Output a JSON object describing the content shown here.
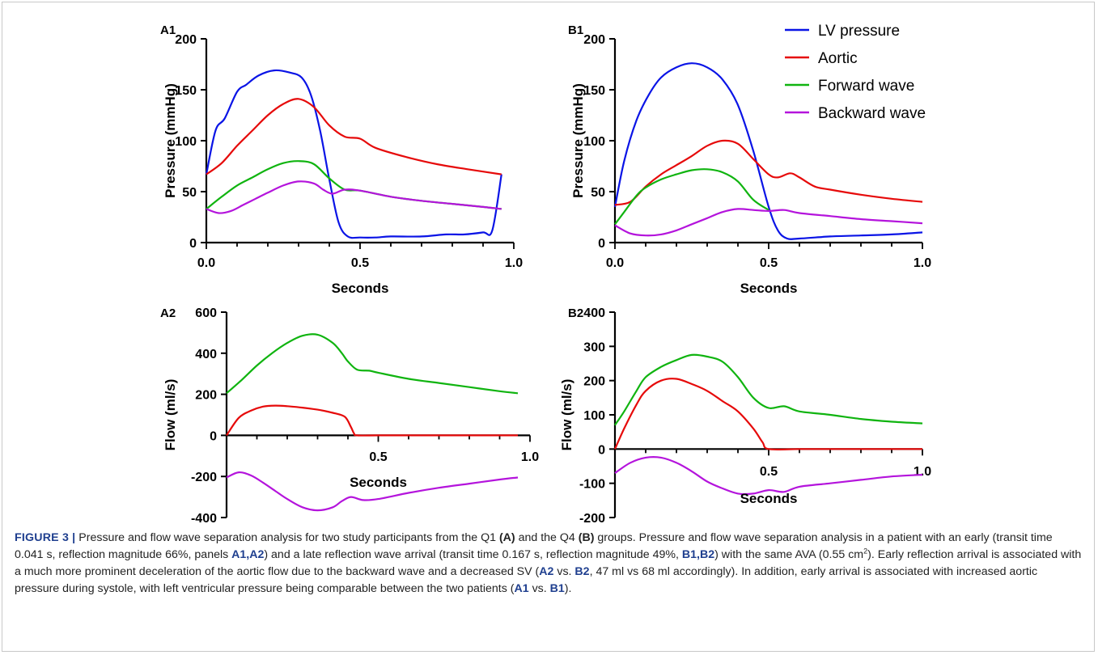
{
  "colors": {
    "lv_pressure": "#0a14e6",
    "aortic": "#e60a0a",
    "forward_wave": "#10b410",
    "backward_wave": "#b414dc",
    "axis": "#000000",
    "caption_label": "#1f3f8f"
  },
  "legend": {
    "items": [
      {
        "label": "LV pressure",
        "color": "#0a14e6"
      },
      {
        "label": "Aortic",
        "color": "#e60a0a"
      },
      {
        "label": "Forward wave",
        "color": "#10b410"
      },
      {
        "label": "Backward wave",
        "color": "#b414dc"
      }
    ],
    "placement": "top-right"
  },
  "chart_data": [
    {
      "panel": "A1",
      "type": "line",
      "xlabel": "Seconds",
      "ylabel": "Pressure (mmHg)",
      "xlim": [
        0,
        1
      ],
      "ylim": [
        0,
        200
      ],
      "xticks": [
        "0.0",
        "0.5",
        "1.0"
      ],
      "yticks": [
        "0",
        "50",
        "100",
        "150",
        "200"
      ],
      "series": [
        {
          "name": "LV pressure",
          "x": [
            0,
            0.03,
            0.06,
            0.1,
            0.13,
            0.17,
            0.22,
            0.27,
            0.31,
            0.34,
            0.37,
            0.4,
            0.43,
            0.46,
            0.5,
            0.55,
            0.6,
            0.7,
            0.78,
            0.84,
            0.9,
            0.93,
            0.96
          ],
          "y": [
            67,
            110,
            122,
            148,
            155,
            164,
            169,
            167,
            162,
            145,
            110,
            62,
            20,
            6,
            5,
            5,
            6,
            6,
            8,
            8,
            10,
            12,
            67
          ]
        },
        {
          "name": "Aortic",
          "x": [
            0,
            0.05,
            0.1,
            0.15,
            0.2,
            0.25,
            0.3,
            0.35,
            0.4,
            0.45,
            0.5,
            0.55,
            0.65,
            0.75,
            0.85,
            0.96
          ],
          "y": [
            67,
            78,
            95,
            110,
            125,
            136,
            141,
            133,
            115,
            104,
            102,
            93,
            84,
            77,
            72,
            67
          ]
        },
        {
          "name": "Forward wave",
          "x": [
            0,
            0.05,
            0.1,
            0.15,
            0.2,
            0.25,
            0.3,
            0.35,
            0.4,
            0.45,
            0.5,
            0.6,
            0.7,
            0.8,
            0.9,
            0.96
          ],
          "y": [
            33,
            45,
            56,
            64,
            72,
            78,
            80,
            77,
            63,
            52,
            51,
            45,
            41,
            38,
            35,
            33
          ]
        },
        {
          "name": "Backward wave",
          "x": [
            0,
            0.04,
            0.08,
            0.12,
            0.16,
            0.2,
            0.25,
            0.3,
            0.35,
            0.38,
            0.41,
            0.45,
            0.5,
            0.6,
            0.7,
            0.8,
            0.9,
            0.96
          ],
          "y": [
            33,
            29,
            31,
            37,
            43,
            49,
            56,
            60,
            58,
            52,
            48,
            52,
            51,
            45,
            41,
            38,
            35,
            33
          ]
        }
      ]
    },
    {
      "panel": "B1",
      "type": "line",
      "xlabel": "Seconds",
      "ylabel": "Pressure (mmHg)",
      "xlim": [
        0,
        1
      ],
      "ylim": [
        0,
        200
      ],
      "xticks": [
        "0.0",
        "0.5",
        "1.0"
      ],
      "yticks": [
        "0",
        "50",
        "100",
        "150",
        "200"
      ],
      "series": [
        {
          "name": "LV pressure",
          "x": [
            0,
            0.03,
            0.07,
            0.11,
            0.15,
            0.2,
            0.25,
            0.3,
            0.35,
            0.4,
            0.45,
            0.5,
            0.53,
            0.56,
            0.6,
            0.7,
            0.8,
            0.9,
            1.0
          ],
          "y": [
            35,
            80,
            120,
            145,
            162,
            172,
            176,
            172,
            160,
            135,
            90,
            35,
            12,
            4,
            4,
            6,
            7,
            8,
            10
          ]
        },
        {
          "name": "Aortic",
          "x": [
            0,
            0.05,
            0.1,
            0.15,
            0.2,
            0.25,
            0.3,
            0.35,
            0.4,
            0.45,
            0.5,
            0.53,
            0.57,
            0.6,
            0.65,
            0.7,
            0.8,
            0.9,
            1.0
          ],
          "y": [
            37,
            40,
            55,
            67,
            76,
            85,
            95,
            100,
            97,
            82,
            67,
            64,
            68,
            64,
            55,
            52,
            47,
            43,
            40
          ]
        },
        {
          "name": "Forward wave",
          "x": [
            0,
            0.03,
            0.07,
            0.1,
            0.15,
            0.2,
            0.25,
            0.3,
            0.35,
            0.4,
            0.45,
            0.5
          ],
          "y": [
            18,
            30,
            46,
            54,
            62,
            67,
            71,
            72,
            69,
            60,
            42,
            32
          ]
        },
        {
          "name": "Backward wave",
          "x": [
            0,
            0.05,
            0.1,
            0.15,
            0.2,
            0.25,
            0.3,
            0.35,
            0.4,
            0.45,
            0.5,
            0.55,
            0.6,
            0.7,
            0.8,
            0.9,
            1.0
          ],
          "y": [
            17,
            9,
            7,
            8,
            12,
            18,
            24,
            30,
            33,
            32,
            31,
            32,
            29,
            26,
            23,
            21,
            19
          ]
        }
      ]
    },
    {
      "panel": "A2",
      "type": "line",
      "xlabel": "Seconds",
      "ylabel": "Flow (ml/s)",
      "xlim": [
        0,
        1
      ],
      "ylim": [
        -400,
        600
      ],
      "xticks": [
        "0.5",
        "1.0"
      ],
      "yticks": [
        "-400",
        "-200",
        "0",
        "200",
        "400",
        "600"
      ],
      "series": [
        {
          "name": "Forward wave",
          "x": [
            0,
            0.05,
            0.1,
            0.15,
            0.2,
            0.25,
            0.3,
            0.35,
            0.38,
            0.4,
            0.43,
            0.47,
            0.5,
            0.6,
            0.7,
            0.8,
            0.9,
            0.96
          ],
          "y": [
            205,
            270,
            340,
            400,
            450,
            485,
            490,
            450,
            400,
            360,
            320,
            315,
            305,
            275,
            255,
            235,
            215,
            205
          ]
        },
        {
          "name": "Aortic",
          "x": [
            0,
            0.04,
            0.08,
            0.12,
            0.16,
            0.2,
            0.25,
            0.3,
            0.35,
            0.39,
            0.41,
            0.42,
            0.43,
            0.5,
            0.6,
            0.7,
            0.8,
            0.9,
            0.96
          ],
          "y": [
            0,
            85,
            120,
            140,
            145,
            142,
            135,
            125,
            110,
            90,
            40,
            10,
            0,
            0,
            0,
            0,
            0,
            0,
            0
          ]
        },
        {
          "name": "Backward wave",
          "x": [
            0,
            0.04,
            0.08,
            0.12,
            0.16,
            0.2,
            0.25,
            0.3,
            0.35,
            0.38,
            0.41,
            0.45,
            0.5,
            0.6,
            0.7,
            0.8,
            0.9,
            0.96
          ],
          "y": [
            -205,
            -180,
            -195,
            -230,
            -270,
            -310,
            -350,
            -365,
            -350,
            -320,
            -300,
            -315,
            -310,
            -280,
            -255,
            -235,
            -215,
            -205
          ]
        }
      ]
    },
    {
      "panel": "B2",
      "type": "line",
      "xlabel": "Seconds",
      "ylabel": "Flow (ml/s)",
      "xlim": [
        0,
        1
      ],
      "ylim": [
        -200,
        400
      ],
      "xticks": [
        "0.5",
        "1.0"
      ],
      "yticks": [
        "-200",
        "-100",
        "0",
        "100",
        "200",
        "300",
        "400"
      ],
      "series": [
        {
          "name": "Forward wave",
          "x": [
            0,
            0.03,
            0.07,
            0.1,
            0.15,
            0.2,
            0.25,
            0.3,
            0.35,
            0.4,
            0.45,
            0.5,
            0.55,
            0.6,
            0.7,
            0.8,
            0.9,
            1.0
          ],
          "y": [
            70,
            110,
            170,
            210,
            240,
            260,
            275,
            270,
            255,
            210,
            150,
            120,
            125,
            110,
            100,
            88,
            80,
            75
          ]
        },
        {
          "name": "Aortic",
          "x": [
            0,
            0.03,
            0.07,
            0.1,
            0.15,
            0.2,
            0.25,
            0.3,
            0.35,
            0.4,
            0.45,
            0.48,
            0.5,
            0.6,
            0.7,
            0.8,
            0.9,
            1.0
          ],
          "y": [
            0,
            60,
            130,
            170,
            200,
            205,
            190,
            170,
            140,
            110,
            60,
            20,
            0,
            0,
            0,
            0,
            0,
            0
          ]
        },
        {
          "name": "Backward wave",
          "x": [
            0,
            0.05,
            0.1,
            0.15,
            0.2,
            0.25,
            0.3,
            0.35,
            0.4,
            0.45,
            0.5,
            0.55,
            0.6,
            0.7,
            0.8,
            0.9,
            1.0
          ],
          "y": [
            -70,
            -40,
            -25,
            -25,
            -40,
            -65,
            -95,
            -115,
            -130,
            -130,
            -120,
            -125,
            -110,
            -100,
            -90,
            -80,
            -75
          ]
        }
      ]
    }
  ],
  "caption": {
    "label": "FIGURE 3 |",
    "t1": " Pressure and flow wave separation analysis for two study participants from the Q1 ",
    "a_ref": "(A)",
    "t2": " and the Q4 ",
    "b_ref": "(B)",
    "t3": " groups. Pressure and flow wave separation analysis in a patient with an early (transit time 0.041 s, reflection magnitude 66%, panels ",
    "a1a2": "A1,A2",
    "t4": ") and a late reflection wave arrival (transit time 0.167 s, reflection magnitude 49%, ",
    "b1b2": "B1,B2",
    "t5": ") with the same AVA (0.55 cm",
    "sup": "2",
    "t6": "). Early reflection arrival is associated with a much more prominent deceleration of the aortic flow due to the backward wave and a decreased SV (",
    "a2": "A2",
    "vs1": " vs. ",
    "b2": "B2",
    "t7": ", 47 ml vs 68 ml accordingly). In addition, early arrival is associated with increased aortic pressure during systole, with left ventricular pressure being comparable between the two patients (",
    "a1": "A1",
    "vs2": " vs. ",
    "b1": "B1",
    "t8": ")."
  }
}
